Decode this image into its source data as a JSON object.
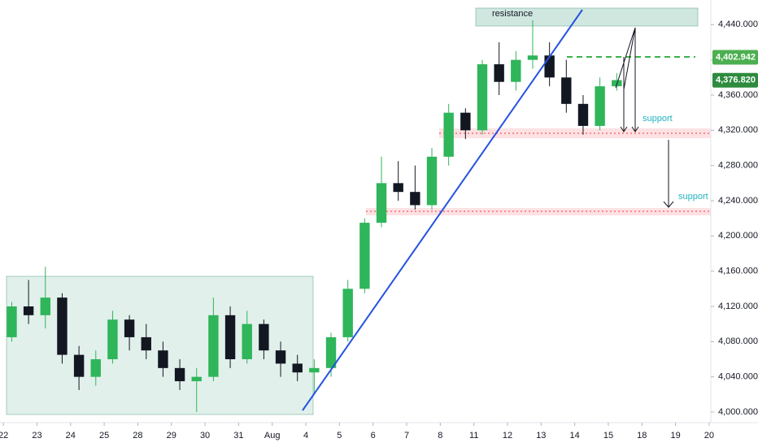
{
  "chart_data": {
    "type": "candlestick",
    "up_color": "#2fb55a",
    "down_color": "#131722",
    "x": [
      0.25,
      0.75,
      1.25,
      1.75,
      2.25,
      2.75,
      3.25,
      3.75,
      4.25,
      4.75,
      5.25,
      5.75,
      6.25,
      6.75,
      7.25,
      7.75,
      8.25,
      8.75,
      9.25,
      9.75,
      10.25,
      10.75,
      11.25,
      11.75,
      12.25,
      12.75,
      13.25,
      13.75,
      14.25,
      14.75,
      15.25,
      15.75,
      16.25,
      16.75,
      17.25,
      17.75,
      18.25
    ],
    "open": [
      4085,
      4120,
      4110,
      4130,
      4065,
      4040,
      4060,
      4105,
      4085,
      4070,
      4050,
      4035,
      4040,
      4110,
      4060,
      4100,
      4070,
      4055,
      4045,
      4050,
      4085,
      4140,
      4215,
      4260,
      4250,
      4235,
      4290,
      4340,
      4320,
      4395,
      4375,
      4400,
      4405,
      4380,
      4350,
      4325,
      4370
    ],
    "high": [
      4125,
      4150,
      4165,
      4135,
      4075,
      4070,
      4115,
      4110,
      4100,
      4080,
      4060,
      4050,
      4130,
      4120,
      4115,
      4105,
      4080,
      4065,
      4060,
      4090,
      4150,
      4220,
      4290,
      4285,
      4280,
      4300,
      4350,
      4345,
      4400,
      4420,
      4410,
      4445,
      4420,
      4400,
      4360,
      4380,
      4385
    ],
    "low": [
      4080,
      4100,
      4095,
      4055,
      4025,
      4030,
      4055,
      4070,
      4060,
      4040,
      4025,
      4000,
      4035,
      4050,
      4055,
      4060,
      4040,
      4035,
      4020,
      4040,
      4080,
      4135,
      4210,
      4240,
      4230,
      4230,
      4280,
      4310,
      4315,
      4360,
      4365,
      4390,
      4370,
      4340,
      4315,
      4320,
      4365
    ],
    "close": [
      4120,
      4110,
      4130,
      4065,
      4040,
      4060,
      4105,
      4085,
      4070,
      4050,
      4035,
      4040,
      4110,
      4060,
      4100,
      4070,
      4055,
      4045,
      4050,
      4085,
      4140,
      4215,
      4260,
      4250,
      4235,
      4290,
      4340,
      4320,
      4395,
      4375,
      4400,
      4405,
      4380,
      4350,
      4325,
      4370,
      4377
    ],
    "xlim": [
      -0.1,
      21.05
    ],
    "ylim": [
      3988,
      4468
    ],
    "xticks": [
      {
        "value": 0,
        "label": "22"
      },
      {
        "value": 1,
        "label": "23"
      },
      {
        "value": 2,
        "label": "24"
      },
      {
        "value": 3,
        "label": "25"
      },
      {
        "value": 4,
        "label": "28"
      },
      {
        "value": 5,
        "label": "29"
      },
      {
        "value": 6,
        "label": "30"
      },
      {
        "value": 7,
        "label": "31"
      },
      {
        "value": 8,
        "label": "Aug"
      },
      {
        "value": 9,
        "label": "4"
      },
      {
        "value": 10,
        "label": "5"
      },
      {
        "value": 11,
        "label": "6"
      },
      {
        "value": 12,
        "label": "7"
      },
      {
        "value": 13,
        "label": "8"
      },
      {
        "value": 14,
        "label": "11"
      },
      {
        "value": 15,
        "label": "12"
      },
      {
        "value": 16,
        "label": "13"
      },
      {
        "value": 17,
        "label": "14"
      },
      {
        "value": 18,
        "label": "15"
      },
      {
        "value": 19,
        "label": "18"
      },
      {
        "value": 20,
        "label": "19"
      },
      {
        "value": 21,
        "label": "20"
      }
    ],
    "yticks": [
      {
        "value": 4000,
        "label": "4,000.000"
      },
      {
        "value": 4040,
        "label": "4,040.000"
      },
      {
        "value": 4080,
        "label": "4,080.000"
      },
      {
        "value": 4120,
        "label": "4,120.000"
      },
      {
        "value": 4160,
        "label": "4,160.000"
      },
      {
        "value": 4200,
        "label": "4,200.000"
      },
      {
        "value": 4240,
        "label": "4,240.000"
      },
      {
        "value": 4280,
        "label": "4,280.000"
      },
      {
        "value": 4320,
        "label": "4,320.000"
      },
      {
        "value": 4360,
        "label": "4,360.000"
      },
      {
        "value": 4400,
        "label": "4,400.000"
      },
      {
        "value": 4440,
        "label": "4,440.000"
      }
    ],
    "price_labels": [
      {
        "value": 4402.942,
        "label": "4,402.942",
        "color": "#4caf50"
      },
      {
        "value": 4376.82,
        "label": "4,376.820",
        "color": "#2e8b3e"
      }
    ],
    "annotations": [
      "resistance",
      "support",
      "support"
    ]
  }
}
